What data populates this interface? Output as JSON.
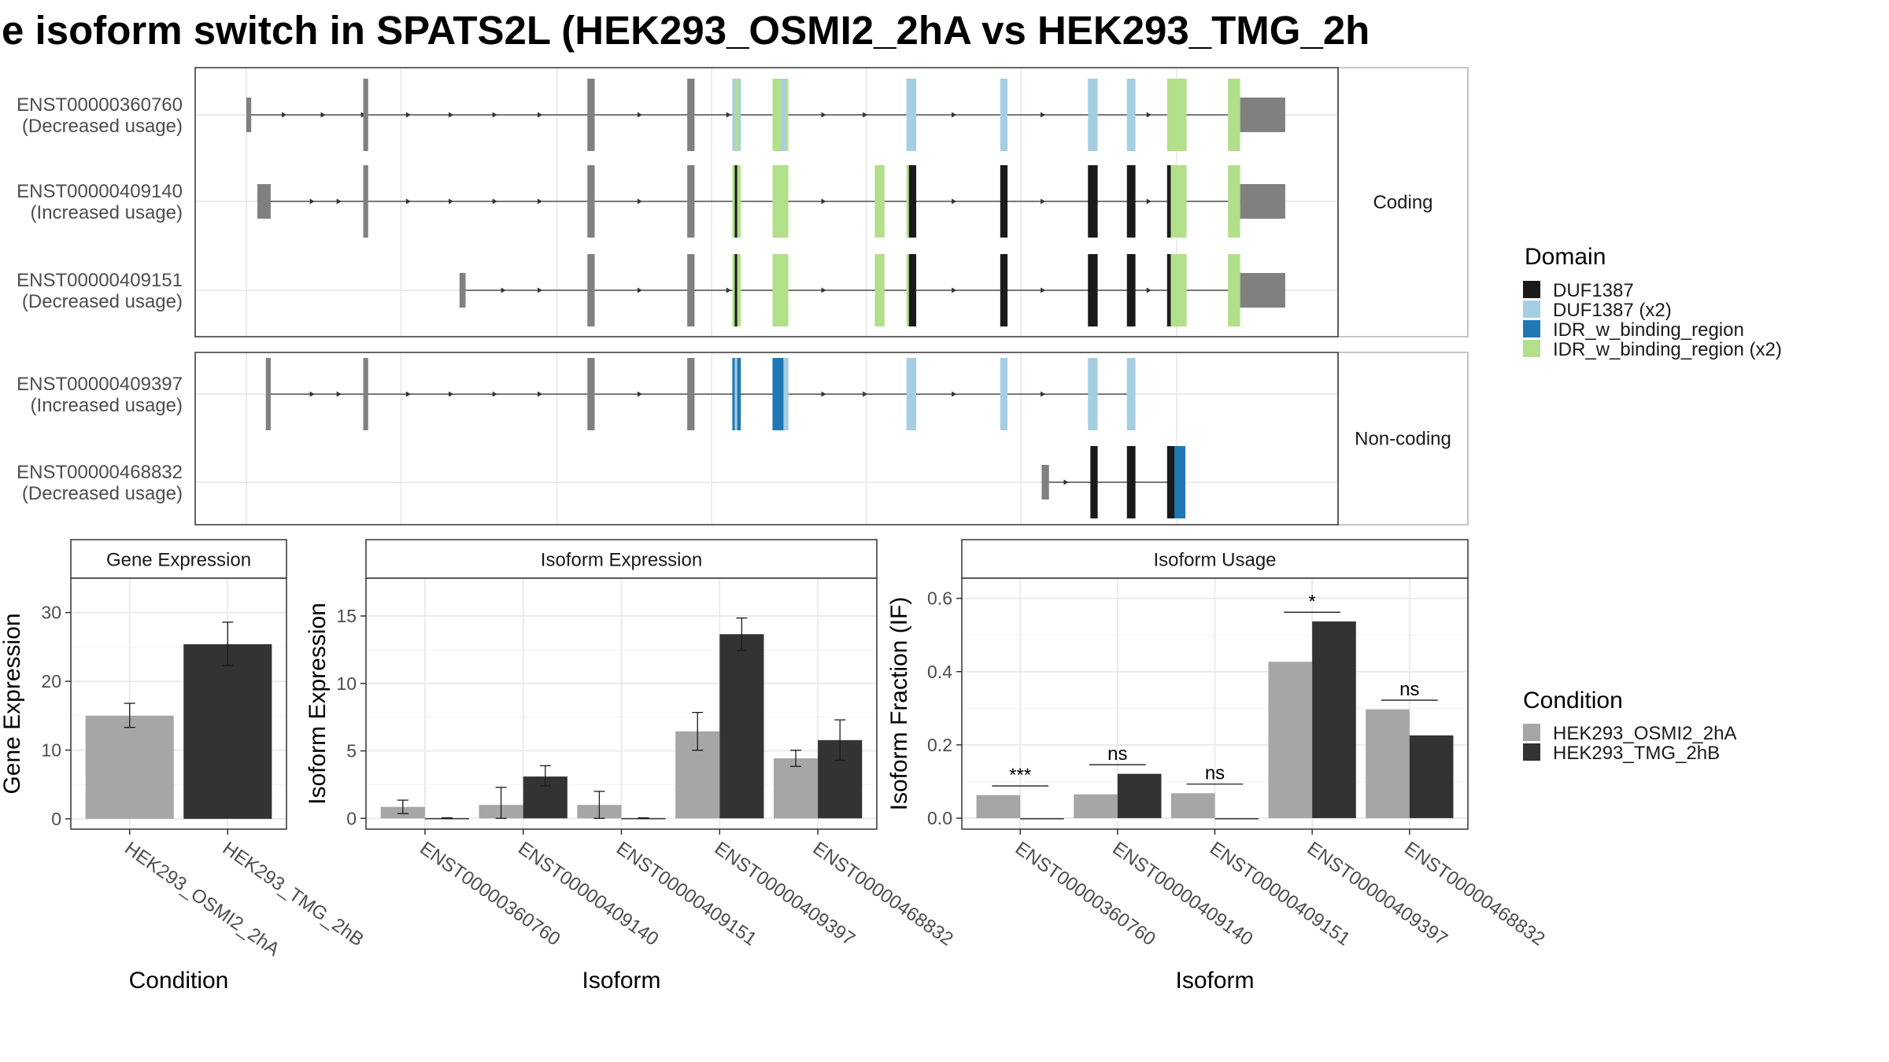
{
  "title": "e isoform switch in SPATS2L (HEK293_OSMI2_2hA vs HEK293_TMG_2h",
  "colors": {
    "DUF1387": "#1a1a1a",
    "DUF1387 (x2)": "#a6cee3",
    "IDR_w_binding_region": "#1f78b4",
    "IDR_w_binding_region (x2)": "#b2df8a",
    "noncoding_exon": "#808080",
    "HEK293_OSMI2_2hA": "#a6a6a6",
    "HEK293_TMG_2hB": "#333333"
  },
  "chart_data": [
    {
      "type": "isoform_structure",
      "panels": [
        {
          "strip": "Coding",
          "isoforms": [
            {
              "id": "ENST00000360760",
              "usage": "(Decreased usage)",
              "introns": [
                [
                  203,
                  1020
                ]
              ],
              "arrows": [
                235,
                267,
                300,
                337,
                372,
                408,
                445,
                527,
                600,
                678,
                712,
                785,
                858,
                945
              ],
              "exons": [
                {
                  "s": 202,
                  "e": 206,
                  "h": "utr",
                  "c": "noncoding_exon"
                },
                {
                  "s": 298,
                  "e": 302,
                  "h": "cds",
                  "c": "noncoding_exon"
                },
                {
                  "s": 482,
                  "e": 488,
                  "h": "cds",
                  "c": "noncoding_exon"
                },
                {
                  "s": 564,
                  "e": 570,
                  "h": "cds",
                  "c": "noncoding_exon"
                },
                {
                  "s": 601,
                  "e": 608,
                  "h": "cds",
                  "c": "DUF1387 (x2)"
                },
                {
                  "s": 603,
                  "e": 606,
                  "h": "cds",
                  "c": "IDR_w_binding_region (x2)"
                },
                {
                  "s": 634,
                  "e": 647,
                  "h": "cds",
                  "c": "IDR_w_binding_region (x2)"
                },
                {
                  "s": 641,
                  "e": 645,
                  "h": "cds",
                  "c": "DUF1387 (x2)"
                },
                {
                  "s": 744,
                  "e": 752,
                  "h": "cds",
                  "c": "DUF1387 (x2)"
                },
                {
                  "s": 821,
                  "e": 827,
                  "h": "cds",
                  "c": "DUF1387 (x2)"
                },
                {
                  "s": 893,
                  "e": 901,
                  "h": "cds",
                  "c": "DUF1387 (x2)"
                },
                {
                  "s": 925,
                  "e": 932,
                  "h": "cds",
                  "c": "DUF1387 (x2)"
                },
                {
                  "s": 958,
                  "e": 974,
                  "h": "cds",
                  "c": "IDR_w_binding_region (x2)"
                },
                {
                  "s": 1008,
                  "e": 1018,
                  "h": "cds",
                  "c": "IDR_w_binding_region (x2)"
                },
                {
                  "s": 1018,
                  "e": 1055,
                  "h": "utr",
                  "c": "noncoding_exon"
                }
              ]
            },
            {
              "id": "ENST00000409140",
              "usage": "(Increased usage)",
              "introns": [
                [
                  217,
                  1020
                ]
              ],
              "arrows": [
                258,
                280,
                337,
                372,
                408,
                445,
                527,
                678,
                785,
                858,
                945
              ],
              "exons": [
                {
                  "s": 211,
                  "e": 222,
                  "h": "utr",
                  "c": "noncoding_exon"
                },
                {
                  "s": 298,
                  "e": 302,
                  "h": "cds",
                  "c": "noncoding_exon"
                },
                {
                  "s": 482,
                  "e": 488,
                  "h": "cds",
                  "c": "noncoding_exon"
                },
                {
                  "s": 564,
                  "e": 570,
                  "h": "cds",
                  "c": "noncoding_exon"
                },
                {
                  "s": 601,
                  "e": 608,
                  "h": "cds",
                  "c": "IDR_w_binding_region (x2)"
                },
                {
                  "s": 603,
                  "e": 605,
                  "h": "cds",
                  "c": "DUF1387"
                },
                {
                  "s": 634,
                  "e": 647,
                  "h": "cds",
                  "c": "IDR_w_binding_region (x2)"
                },
                {
                  "s": 718,
                  "e": 726,
                  "h": "cds",
                  "c": "IDR_w_binding_region (x2)"
                },
                {
                  "s": 744,
                  "e": 748,
                  "h": "cds",
                  "c": "IDR_w_binding_region (x2)"
                },
                {
                  "s": 746,
                  "e": 752,
                  "h": "cds",
                  "c": "DUF1387"
                },
                {
                  "s": 821,
                  "e": 827,
                  "h": "cds",
                  "c": "DUF1387"
                },
                {
                  "s": 893,
                  "e": 901,
                  "h": "cds",
                  "c": "DUF1387"
                },
                {
                  "s": 925,
                  "e": 932,
                  "h": "cds",
                  "c": "DUF1387"
                },
                {
                  "s": 958,
                  "e": 974,
                  "h": "cds",
                  "c": "IDR_w_binding_region (x2)"
                },
                {
                  "s": 958,
                  "e": 961,
                  "h": "cds",
                  "c": "DUF1387"
                },
                {
                  "s": 1008,
                  "e": 1018,
                  "h": "cds",
                  "c": "IDR_w_binding_region (x2)"
                },
                {
                  "s": 1018,
                  "e": 1055,
                  "h": "utr",
                  "c": "noncoding_exon"
                }
              ]
            },
            {
              "id": "ENST00000409151",
              "usage": "(Decreased usage)",
              "introns": [
                [
                  380,
                  1020
                ]
              ],
              "arrows": [
                415,
                445,
                527,
                600,
                678,
                785,
                858,
                945
              ],
              "exons": [
                {
                  "s": 377,
                  "e": 382,
                  "h": "utr",
                  "c": "noncoding_exon"
                },
                {
                  "s": 482,
                  "e": 488,
                  "h": "cds",
                  "c": "noncoding_exon"
                },
                {
                  "s": 564,
                  "e": 570,
                  "h": "cds",
                  "c": "noncoding_exon"
                },
                {
                  "s": 601,
                  "e": 608,
                  "h": "cds",
                  "c": "IDR_w_binding_region (x2)"
                },
                {
                  "s": 603,
                  "e": 605,
                  "h": "cds",
                  "c": "DUF1387"
                },
                {
                  "s": 634,
                  "e": 647,
                  "h": "cds",
                  "c": "IDR_w_binding_region (x2)"
                },
                {
                  "s": 718,
                  "e": 726,
                  "h": "cds",
                  "c": "IDR_w_binding_region (x2)"
                },
                {
                  "s": 744,
                  "e": 748,
                  "h": "cds",
                  "c": "IDR_w_binding_region (x2)"
                },
                {
                  "s": 746,
                  "e": 752,
                  "h": "cds",
                  "c": "DUF1387"
                },
                {
                  "s": 821,
                  "e": 827,
                  "h": "cds",
                  "c": "DUF1387"
                },
                {
                  "s": 893,
                  "e": 901,
                  "h": "cds",
                  "c": "DUF1387"
                },
                {
                  "s": 925,
                  "e": 932,
                  "h": "cds",
                  "c": "DUF1387"
                },
                {
                  "s": 958,
                  "e": 974,
                  "h": "cds",
                  "c": "IDR_w_binding_region (x2)"
                },
                {
                  "s": 958,
                  "e": 961,
                  "h": "cds",
                  "c": "DUF1387"
                },
                {
                  "s": 1008,
                  "e": 1018,
                  "h": "cds",
                  "c": "IDR_w_binding_region (x2)"
                },
                {
                  "s": 1018,
                  "e": 1055,
                  "h": "utr",
                  "c": "noncoding_exon"
                }
              ]
            }
          ]
        },
        {
          "strip": "Non-coding",
          "isoforms": [
            {
              "id": "ENST00000409397",
              "usage": "(Increased usage)",
              "introns": [
                [
                  220,
                  931
                ]
              ],
              "arrows": [
                258,
                280,
                337,
                372,
                408,
                445,
                527,
                678,
                712,
                785,
                858
              ],
              "exons": [
                {
                  "s": 218,
                  "e": 222,
                  "h": "cds",
                  "c": "noncoding_exon"
                },
                {
                  "s": 298,
                  "e": 302,
                  "h": "cds",
                  "c": "noncoding_exon"
                },
                {
                  "s": 482,
                  "e": 488,
                  "h": "cds",
                  "c": "noncoding_exon"
                },
                {
                  "s": 564,
                  "e": 570,
                  "h": "cds",
                  "c": "noncoding_exon"
                },
                {
                  "s": 601,
                  "e": 608,
                  "h": "cds",
                  "c": "IDR_w_binding_region"
                },
                {
                  "s": 603,
                  "e": 605,
                  "h": "cds",
                  "c": "DUF1387 (x2)"
                },
                {
                  "s": 634,
                  "e": 647,
                  "h": "cds",
                  "c": "IDR_w_binding_region"
                },
                {
                  "s": 643,
                  "e": 647,
                  "h": "cds",
                  "c": "DUF1387 (x2)"
                },
                {
                  "s": 744,
                  "e": 752,
                  "h": "cds",
                  "c": "DUF1387 (x2)"
                },
                {
                  "s": 821,
                  "e": 827,
                  "h": "cds",
                  "c": "DUF1387 (x2)"
                },
                {
                  "s": 893,
                  "e": 901,
                  "h": "cds",
                  "c": "DUF1387 (x2)"
                },
                {
                  "s": 925,
                  "e": 932,
                  "h": "cds",
                  "c": "DUF1387 (x2)"
                }
              ]
            },
            {
              "id": "ENST00000468832",
              "usage": "(Decreased usage)",
              "introns": [
                [
                  858,
                  970
                ]
              ],
              "arrows": [
                877
              ],
              "exons": [
                {
                  "s": 855,
                  "e": 861,
                  "h": "utr",
                  "c": "noncoding_exon"
                },
                {
                  "s": 895,
                  "e": 901,
                  "h": "cds",
                  "c": "DUF1387"
                },
                {
                  "s": 925,
                  "e": 932,
                  "h": "cds",
                  "c": "DUF1387"
                },
                {
                  "s": 958,
                  "e": 966,
                  "h": "cds",
                  "c": "DUF1387"
                },
                {
                  "s": 964,
                  "e": 973,
                  "h": "cds",
                  "c": "IDR_w_binding_region"
                }
              ]
            }
          ]
        }
      ],
      "legend": {
        "title": "Domain",
        "entries": [
          "DUF1387",
          "DUF1387 (x2)",
          "IDR_w_binding_region",
          "IDR_w_binding_region (x2)"
        ]
      }
    },
    {
      "type": "bar",
      "title": "Gene Expression",
      "xlabel": "Condition",
      "ylabel": "Gene Expression",
      "categories": [
        "HEK293_OSMI2_2hA",
        "HEK293_TMG_2hB"
      ],
      "values": [
        15.0,
        25.4
      ],
      "errors": [
        [
          13.3,
          16.8
        ],
        [
          22.3,
          28.6
        ]
      ],
      "ylim": [
        -1.5,
        35
      ],
      "yticks": [
        0,
        10,
        20,
        30
      ]
    },
    {
      "type": "bar",
      "title": "Isoform Expression",
      "xlabel": "Isoform",
      "ylabel": "Isoform Expression",
      "categories": [
        "ENST00000360760",
        "ENST00000409140",
        "ENST00000409151",
        "ENST00000409397",
        "ENST00000468832"
      ],
      "series": [
        {
          "name": "HEK293_OSMI2_2hA",
          "values": [
            0.85,
            1.0,
            1.0,
            6.45,
            4.45
          ],
          "errors": [
            [
              0.35,
              1.35
            ],
            [
              0.0,
              2.3
            ],
            [
              0.0,
              2.0
            ],
            [
              5.05,
              7.85
            ],
            [
              3.85,
              5.05
            ]
          ]
        },
        {
          "name": "HEK293_TMG_2hB",
          "values": [
            0.02,
            3.1,
            0.02,
            13.65,
            5.8
          ],
          "errors": [
            [
              0.0,
              0.04
            ],
            [
              2.4,
              3.9
            ],
            [
              0.0,
              0.04
            ],
            [
              12.45,
              14.85
            ],
            [
              4.3,
              7.3
            ]
          ]
        }
      ],
      "ylim": [
        -0.8,
        17.8
      ],
      "yticks": [
        0,
        5,
        10,
        15
      ]
    },
    {
      "type": "bar",
      "title": "Isoform Usage",
      "xlabel": "Isoform",
      "ylabel": "Isoform Fraction (IF)",
      "categories": [
        "ENST00000360760",
        "ENST00000409140",
        "ENST00000409151",
        "ENST00000409397",
        "ENST00000468832"
      ],
      "series": [
        {
          "name": "HEK293_OSMI2_2hA",
          "values": [
            0.063,
            0.065,
            0.068,
            0.427,
            0.297
          ]
        },
        {
          "name": "HEK293_TMG_2hB",
          "values": [
            0.0,
            0.121,
            0.0,
            0.537,
            0.226
          ]
        }
      ],
      "annotations": [
        {
          "text": "***",
          "at": 0.088
        },
        {
          "text": "ns",
          "at": 0.146
        },
        {
          "text": "ns",
          "at": 0.093
        },
        {
          "text": "*",
          "at": 0.562
        },
        {
          "text": "ns",
          "at": 0.322
        }
      ],
      "ylim": [
        -0.03,
        0.655
      ],
      "yticks": [
        "0.0",
        "0.2",
        "0.4",
        "0.6"
      ]
    }
  ],
  "condition_legend": {
    "title": "Condition",
    "entries": [
      "HEK293_OSMI2_2hA",
      "HEK293_TMG_2hB"
    ]
  }
}
